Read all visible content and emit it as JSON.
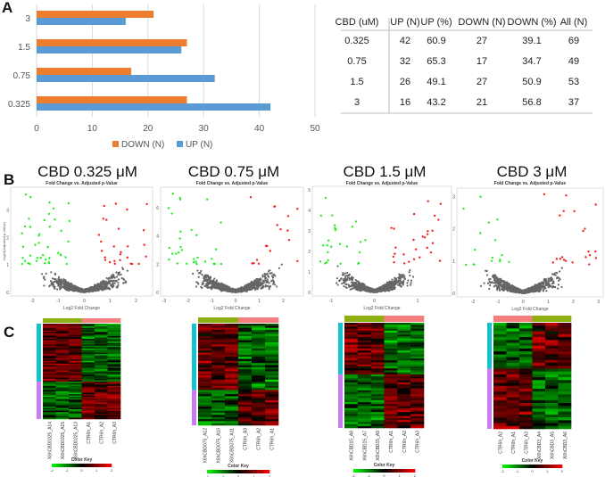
{
  "panels": {
    "a": "A",
    "b": "B",
    "c": "C"
  },
  "chart_data": [
    {
      "type": "bar",
      "orientation": "horizontal",
      "categories": [
        "3",
        "1.5",
        "0.75",
        "0.325"
      ],
      "series": [
        {
          "name": "DOWN (N)",
          "values": [
            21,
            27,
            17,
            27
          ],
          "color": "#ED7D31"
        },
        {
          "name": "UP (N)",
          "values": [
            16,
            26,
            32,
            42
          ],
          "color": "#5B9BD5"
        }
      ],
      "xlim": [
        0,
        50
      ],
      "xticks": [
        "0",
        "10",
        "20",
        "30",
        "40",
        "50"
      ],
      "grid": true,
      "legend": "bottom"
    },
    {
      "type": "table",
      "columns": [
        "CBD (uM)",
        "UP (N)",
        "UP (%)",
        "DOWN (N)",
        "DOWN (%)",
        "All (N)"
      ],
      "rows": [
        [
          "0.325",
          "42",
          "60.9",
          "27",
          "39.1",
          "69"
        ],
        [
          "0.75",
          "32",
          "65.3",
          "17",
          "34.7",
          "49"
        ],
        [
          "1.5",
          "26",
          "49.1",
          "27",
          "50.9",
          "53"
        ],
        [
          "3",
          "16",
          "43.2",
          "21",
          "56.8",
          "37"
        ]
      ]
    },
    {
      "type": "scatter",
      "title": "CBD 0.325 μM",
      "subtitle": "Fold Change vs. Adjusted p-Value",
      "xlabel": "Log2 Fold Change",
      "ylabel": "-log10(Adjusted p-Value)",
      "xlim": [
        -2.7,
        2.5
      ],
      "ylim": [
        0,
        3.7
      ],
      "xticks": [
        "-2",
        "-1",
        "0",
        "1",
        "2"
      ],
      "yticks": [
        "0",
        "1",
        "2",
        "3"
      ],
      "colors": {
        "down": "#22EE22",
        "up": "#EE2222",
        "ns": "#666666"
      }
    },
    {
      "type": "scatter",
      "title": "CBD 0.75 μM",
      "subtitle": "Fold Change vs. Adjusted p-Value",
      "xlabel": "Log2 Fold Change",
      "ylabel": "",
      "xlim": [
        -3.0,
        2.7
      ],
      "ylim": [
        0,
        7.2
      ],
      "xticks": [
        "-3",
        "-2",
        "-1",
        "0",
        "1",
        "2"
      ],
      "yticks": [
        "0",
        "2",
        "4",
        "6"
      ],
      "colors": {
        "down": "#22EE22",
        "up": "#EE2222",
        "ns": "#666666"
      }
    },
    {
      "type": "scatter",
      "title": "CBD 1.5 μM",
      "subtitle": "Fold Change vs. Adjusted p-Value",
      "xlabel": "Log2 Fold Change",
      "ylabel": "",
      "xlim": [
        -1.35,
        1.7
      ],
      "ylim": [
        0,
        5.0
      ],
      "xticks": [
        "-1",
        "0",
        "1"
      ],
      "yticks": [
        "0",
        "1",
        "2",
        "3",
        "4",
        "5"
      ],
      "colors": {
        "down": "#22EE22",
        "up": "#EE2222",
        "ns": "#666666"
      }
    },
    {
      "type": "scatter",
      "title": "CBD 3 μM",
      "subtitle": "Fold Change vs. Adjusted p-Value",
      "xlabel": "Log2 Fold Change",
      "ylabel": "",
      "xlim": [
        -2.5,
        3.05
      ],
      "ylim": [
        0,
        3.15
      ],
      "xticks": [
        "-2",
        "-1",
        "0",
        "1",
        "2",
        "3"
      ],
      "yticks": [
        "0",
        "1",
        "2",
        "3"
      ],
      "colors": {
        "down": "#22EE22",
        "up": "#EE2222",
        "ns": "#666666"
      }
    },
    {
      "type": "heatmap",
      "columns": [
        "X6hCBD0325_A14",
        "X6hCBD0325_A15",
        "X6hCBD0325_A13",
        "CTR6h_A1",
        "CTR6h_A2",
        "CTR6h_A3"
      ],
      "column_groups": [
        "cbd",
        "cbd",
        "cbd",
        "ctr",
        "ctr",
        "ctr"
      ],
      "row_groups": {
        "up": 42,
        "down": 27
      },
      "color_key": {
        "title": "Color Key",
        "ticks": [
          "-2",
          "-1",
          "0",
          "1",
          "2"
        ]
      }
    },
    {
      "type": "heatmap",
      "columns": [
        "X6hCBD075_A12",
        "X6hCBD075_A10",
        "X6hCBD075_A11",
        "CTR6h_A3",
        "CTR6h_A2",
        "CTR6h_A1"
      ],
      "column_groups": [
        "cbd",
        "cbd",
        "cbd",
        "ctr",
        "ctr",
        "ctr"
      ],
      "row_groups": {
        "up": 32,
        "down": 17
      },
      "color_key": {
        "title": "Color Key",
        "ticks": [
          "-2",
          "-1",
          "0",
          "1",
          "2"
        ]
      }
    },
    {
      "type": "heatmap",
      "columns": [
        "X6hCBD15_A8",
        "X6hCBD15_A7",
        "X6hCBD15_A9",
        "CTR6h_A1",
        "CTR6h_A2",
        "CTR6h_A3"
      ],
      "column_groups": [
        "cbd",
        "cbd",
        "cbd",
        "ctr",
        "ctr",
        "ctr"
      ],
      "row_groups": {
        "up": 26,
        "down": 27
      },
      "color_key": {
        "title": "Color Key",
        "ticks": [
          "-2",
          "-1",
          "0",
          "1",
          "2"
        ]
      }
    },
    {
      "type": "heatmap",
      "columns": [
        "CTR6h_A2",
        "CTR6h_A1",
        "CTR6h_A3",
        "X6hCBD3_A4",
        "X6hCBD3_A5",
        "X6hCBD3_A6"
      ],
      "column_groups": [
        "ctr",
        "ctr",
        "ctr",
        "cbd",
        "cbd",
        "cbd"
      ],
      "row_groups": {
        "up": 16,
        "down": 21
      },
      "color_key": {
        "title": "Color Key",
        "ticks": [
          "-2",
          "-1",
          "0",
          "1",
          "2"
        ]
      }
    }
  ],
  "colors": {
    "cbd_group": "#8DB010",
    "ctr_group": "#F47E7E",
    "up_rows": "#12C2CC",
    "down_rows": "#C77CF0"
  }
}
